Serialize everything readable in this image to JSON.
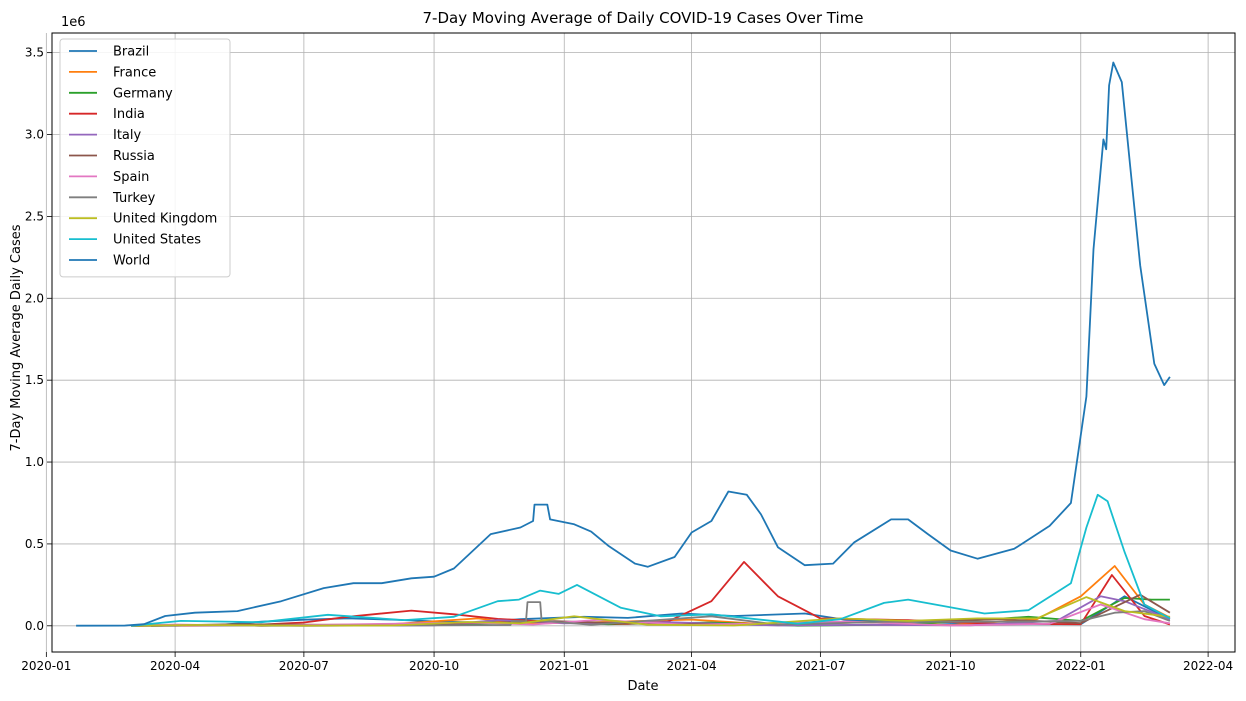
{
  "chart_data": {
    "type": "line",
    "title": "7-Day Moving Average of Daily COVID-19 Cases Over Time",
    "xlabel": "Date",
    "ylabel": "7-Day Moving Average Daily Cases",
    "y_offset_label": "1e6",
    "xlim": [
      "2020-01-05",
      "2022-04-20"
    ],
    "ylim": [
      -160000,
      3620000
    ],
    "x_ticks": [
      "2020-01",
      "2020-04",
      "2020-07",
      "2020-10",
      "2021-01",
      "2021-04",
      "2021-07",
      "2021-10",
      "2022-01",
      "2022-04"
    ],
    "y_ticks": [
      0.0,
      0.5,
      1.0,
      1.5,
      2.0,
      2.5,
      3.0,
      3.5
    ],
    "grid": true,
    "legend_position": "upper-left",
    "series": [
      {
        "name": "Brazil",
        "color": "#1f77b4",
        "points": [
          [
            "2020-03-01",
            0
          ],
          [
            "2020-04-01",
            500
          ],
          [
            "2020-05-01",
            5000
          ],
          [
            "2020-06-01",
            25000
          ],
          [
            "2020-07-01",
            37000
          ],
          [
            "2020-08-01",
            45000
          ],
          [
            "2020-09-01",
            38000
          ],
          [
            "2020-10-01",
            27000
          ],
          [
            "2020-11-01",
            20000
          ],
          [
            "2020-12-01",
            40000
          ],
          [
            "2021-01-15",
            55000
          ],
          [
            "2021-02-15",
            48000
          ],
          [
            "2021-03-25",
            75000
          ],
          [
            "2021-05-01",
            60000
          ],
          [
            "2021-06-20",
            75000
          ],
          [
            "2021-07-20",
            35000
          ],
          [
            "2021-09-01",
            25000
          ],
          [
            "2021-11-01",
            10000
          ],
          [
            "2022-01-01",
            10000
          ],
          [
            "2022-02-01",
            180000
          ],
          [
            "2022-03-05",
            40000
          ]
        ]
      },
      {
        "name": "France",
        "color": "#ff7f0e",
        "points": [
          [
            "2020-03-01",
            0
          ],
          [
            "2020-04-01",
            4500
          ],
          [
            "2020-06-01",
            500
          ],
          [
            "2020-09-01",
            10000
          ],
          [
            "2020-11-01",
            45000
          ],
          [
            "2020-12-01",
            12000
          ],
          [
            "2021-01-15",
            20000
          ],
          [
            "2021-04-01",
            38000
          ],
          [
            "2021-06-01",
            5000
          ],
          [
            "2021-08-01",
            22000
          ],
          [
            "2021-10-01",
            5000
          ],
          [
            "2021-12-01",
            40000
          ],
          [
            "2022-01-01",
            180000
          ],
          [
            "2022-01-25",
            365000
          ],
          [
            "2022-02-15",
            130000
          ],
          [
            "2022-03-05",
            50000
          ]
        ]
      },
      {
        "name": "Germany",
        "color": "#2ca02c",
        "points": [
          [
            "2020-03-01",
            0
          ],
          [
            "2020-04-01",
            5000
          ],
          [
            "2020-06-01",
            400
          ],
          [
            "2020-10-01",
            5000
          ],
          [
            "2020-12-15",
            25000
          ],
          [
            "2021-02-01",
            10000
          ],
          [
            "2021-04-15",
            20000
          ],
          [
            "2021-06-15",
            800
          ],
          [
            "2021-09-01",
            8000
          ],
          [
            "2021-11-25",
            55000
          ],
          [
            "2022-01-01",
            30000
          ],
          [
            "2022-02-01",
            170000
          ],
          [
            "2022-02-20",
            160000
          ],
          [
            "2022-03-05",
            160000
          ]
        ]
      },
      {
        "name": "India",
        "color": "#d62728",
        "points": [
          [
            "2020-03-01",
            0
          ],
          [
            "2020-05-01",
            2000
          ],
          [
            "2020-06-01",
            8000
          ],
          [
            "2020-07-01",
            20000
          ],
          [
            "2020-08-01",
            55000
          ],
          [
            "2020-09-15",
            93000
          ],
          [
            "2020-10-15",
            70000
          ],
          [
            "2020-11-15",
            42000
          ],
          [
            "2021-01-01",
            20000
          ],
          [
            "2021-02-15",
            12000
          ],
          [
            "2021-03-15",
            25000
          ],
          [
            "2021-04-15",
            150000
          ],
          [
            "2021-05-08",
            390000
          ],
          [
            "2021-06-01",
            180000
          ],
          [
            "2021-07-01",
            45000
          ],
          [
            "2021-09-01",
            35000
          ],
          [
            "2021-11-01",
            12000
          ],
          [
            "2022-01-01",
            10000
          ],
          [
            "2022-01-23",
            310000
          ],
          [
            "2022-02-15",
            60000
          ],
          [
            "2022-03-05",
            8000
          ]
        ]
      },
      {
        "name": "Italy",
        "color": "#9467bd",
        "points": [
          [
            "2020-03-01",
            500
          ],
          [
            "2020-03-22",
            5500
          ],
          [
            "2020-05-01",
            2000
          ],
          [
            "2020-07-01",
            200
          ],
          [
            "2020-10-01",
            3000
          ],
          [
            "2020-11-15",
            35000
          ],
          [
            "2021-01-01",
            15000
          ],
          [
            "2021-03-15",
            22000
          ],
          [
            "2021-06-01",
            2000
          ],
          [
            "2021-08-01",
            6000
          ],
          [
            "2021-10-15",
            3000
          ],
          [
            "2021-12-15",
            30000
          ],
          [
            "2022-01-15",
            180000
          ],
          [
            "2022-02-01",
            150000
          ],
          [
            "2022-03-05",
            40000
          ]
        ]
      },
      {
        "name": "Russia",
        "color": "#8c564b",
        "points": [
          [
            "2020-03-15",
            0
          ],
          [
            "2020-05-15",
            10000
          ],
          [
            "2020-07-15",
            6000
          ],
          [
            "2020-09-01",
            5000
          ],
          [
            "2020-12-25",
            28000
          ],
          [
            "2021-03-01",
            11000
          ],
          [
            "2021-05-01",
            8000
          ],
          [
            "2021-07-10",
            24000
          ],
          [
            "2021-08-15",
            20000
          ],
          [
            "2021-11-05",
            40000
          ],
          [
            "2022-01-01",
            16000
          ],
          [
            "2022-02-12",
            190000
          ],
          [
            "2022-03-05",
            80000
          ]
        ]
      },
      {
        "name": "Spain",
        "color": "#e377c2",
        "points": [
          [
            "2020-03-01",
            0
          ],
          [
            "2020-04-01",
            8000
          ],
          [
            "2020-06-01",
            300
          ],
          [
            "2020-09-01",
            12000
          ],
          [
            "2020-10-25",
            20000
          ],
          [
            "2020-12-10",
            8000
          ],
          [
            "2021-01-25",
            36000
          ],
          [
            "2021-04-01",
            5000
          ],
          [
            "2021-07-20",
            26000
          ],
          [
            "2021-10-01",
            2000
          ],
          [
            "2021-12-10",
            12000
          ],
          [
            "2022-01-15",
            130000
          ],
          [
            "2022-02-15",
            40000
          ],
          [
            "2022-03-05",
            15000
          ]
        ]
      },
      {
        "name": "Turkey",
        "color": "#7f7f7f",
        "points": [
          [
            "2020-03-15",
            0
          ],
          [
            "2020-04-15",
            4000
          ],
          [
            "2020-06-01",
            1000
          ],
          [
            "2020-09-01",
            1600
          ],
          [
            "2020-11-24",
            5000
          ],
          [
            "2020-11-25",
            28000
          ],
          [
            "2020-12-05",
            29000
          ],
          [
            "2020-12-06",
            145000
          ],
          [
            "2020-12-15",
            145000
          ],
          [
            "2020-12-16",
            30000
          ],
          [
            "2021-01-20",
            7000
          ],
          [
            "2021-04-15",
            58000
          ],
          [
            "2021-06-01",
            7000
          ],
          [
            "2021-08-15",
            24000
          ],
          [
            "2021-11-15",
            25000
          ],
          [
            "2022-01-01",
            30000
          ],
          [
            "2022-01-25",
            80000
          ],
          [
            "2022-02-15",
            90000
          ],
          [
            "2022-03-05",
            30000
          ]
        ]
      },
      {
        "name": "United Kingdom",
        "color": "#bcbd22",
        "points": [
          [
            "2020-03-01",
            0
          ],
          [
            "2020-04-15",
            5000
          ],
          [
            "2020-07-01",
            800
          ],
          [
            "2020-09-01",
            2000
          ],
          [
            "2020-10-25",
            23000
          ],
          [
            "2020-12-01",
            15000
          ],
          [
            "2021-01-08",
            58000
          ],
          [
            "2021-03-01",
            7000
          ],
          [
            "2021-05-01",
            2000
          ],
          [
            "2021-07-15",
            45000
          ],
          [
            "2021-09-01",
            30000
          ],
          [
            "2021-10-20",
            45000
          ],
          [
            "2021-12-01",
            45000
          ],
          [
            "2022-01-05",
            175000
          ],
          [
            "2022-02-01",
            90000
          ],
          [
            "2022-03-05",
            55000
          ]
        ]
      },
      {
        "name": "United States",
        "color": "#17becf",
        "points": [
          [
            "2020-03-01",
            0
          ],
          [
            "2020-04-05",
            30000
          ],
          [
            "2020-06-01",
            22000
          ],
          [
            "2020-07-18",
            67000
          ],
          [
            "2020-09-10",
            35000
          ],
          [
            "2020-10-15",
            55000
          ],
          [
            "2020-11-15",
            150000
          ],
          [
            "2020-11-30",
            160000
          ],
          [
            "2020-12-15",
            215000
          ],
          [
            "2020-12-28",
            195000
          ],
          [
            "2021-01-10",
            250000
          ],
          [
            "2021-02-10",
            110000
          ],
          [
            "2021-03-10",
            58000
          ],
          [
            "2021-04-15",
            70000
          ],
          [
            "2021-06-15",
            13000
          ],
          [
            "2021-07-15",
            40000
          ],
          [
            "2021-08-15",
            140000
          ],
          [
            "2021-09-01",
            160000
          ],
          [
            "2021-09-20",
            130000
          ],
          [
            "2021-10-25",
            75000
          ],
          [
            "2021-11-25",
            95000
          ],
          [
            "2021-12-25",
            260000
          ],
          [
            "2022-01-05",
            600000
          ],
          [
            "2022-01-13",
            800000
          ],
          [
            "2022-01-20",
            760000
          ],
          [
            "2022-02-01",
            450000
          ],
          [
            "2022-02-15",
            130000
          ],
          [
            "2022-03-05",
            45000
          ]
        ]
      },
      {
        "name": "World",
        "color": "#1f77b4",
        "points": [
          [
            "2020-01-22",
            500
          ],
          [
            "2020-02-25",
            1000
          ],
          [
            "2020-03-10",
            10000
          ],
          [
            "2020-03-25",
            60000
          ],
          [
            "2020-04-15",
            80000
          ],
          [
            "2020-05-15",
            90000
          ],
          [
            "2020-06-15",
            150000
          ],
          [
            "2020-07-15",
            230000
          ],
          [
            "2020-08-05",
            260000
          ],
          [
            "2020-08-25",
            260000
          ],
          [
            "2020-09-15",
            290000
          ],
          [
            "2020-10-01",
            300000
          ],
          [
            "2020-10-15",
            350000
          ],
          [
            "2020-11-10",
            560000
          ],
          [
            "2020-12-01",
            600000
          ],
          [
            "2020-12-10",
            640000
          ],
          [
            "2020-12-11",
            740000
          ],
          [
            "2020-12-20",
            740000
          ],
          [
            "2020-12-22",
            650000
          ],
          [
            "2021-01-08",
            620000
          ],
          [
            "2021-01-20",
            575000
          ],
          [
            "2021-02-01",
            490000
          ],
          [
            "2021-02-20",
            380000
          ],
          [
            "2021-03-01",
            360000
          ],
          [
            "2021-03-20",
            420000
          ],
          [
            "2021-04-01",
            570000
          ],
          [
            "2021-04-15",
            640000
          ],
          [
            "2021-04-27",
            820000
          ],
          [
            "2021-05-10",
            800000
          ],
          [
            "2021-05-20",
            680000
          ],
          [
            "2021-06-01",
            480000
          ],
          [
            "2021-06-20",
            370000
          ],
          [
            "2021-07-10",
            380000
          ],
          [
            "2021-07-25",
            510000
          ],
          [
            "2021-08-20",
            650000
          ],
          [
            "2021-09-01",
            650000
          ],
          [
            "2021-09-15",
            560000
          ],
          [
            "2021-10-01",
            460000
          ],
          [
            "2021-10-20",
            410000
          ],
          [
            "2021-11-15",
            470000
          ],
          [
            "2021-12-10",
            610000
          ],
          [
            "2021-12-25",
            750000
          ],
          [
            "2022-01-05",
            1400000
          ],
          [
            "2022-01-10",
            2300000
          ],
          [
            "2022-01-17",
            2970000
          ],
          [
            "2022-01-19",
            2910000
          ],
          [
            "2022-01-21",
            3300000
          ],
          [
            "2022-01-24",
            3440000
          ],
          [
            "2022-01-30",
            3320000
          ],
          [
            "2022-02-05",
            2800000
          ],
          [
            "2022-02-12",
            2200000
          ],
          [
            "2022-02-17",
            1900000
          ],
          [
            "2022-02-22",
            1600000
          ],
          [
            "2022-03-01",
            1470000
          ],
          [
            "2022-03-05",
            1520000
          ]
        ]
      }
    ]
  }
}
